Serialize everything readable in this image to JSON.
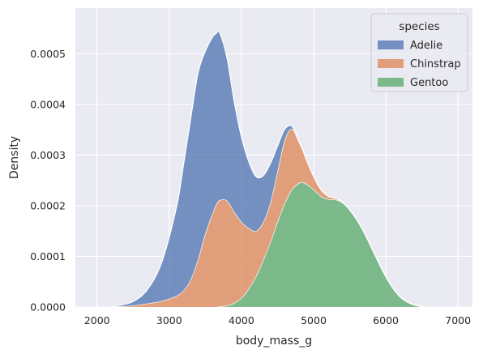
{
  "chart_data": {
    "type": "area",
    "stacked": true,
    "xlabel": "body_mass_g",
    "ylabel": "Density",
    "xlim": [
      1700,
      7200
    ],
    "ylim": [
      0,
      0.00059
    ],
    "xticks": [
      2000,
      3000,
      4000,
      5000,
      6000,
      7000
    ],
    "xtick_labels": [
      "2000",
      "3000",
      "4000",
      "5000",
      "6000",
      "7000"
    ],
    "yticks": [
      0,
      0.0001,
      0.0002,
      0.0003,
      0.0004,
      0.0005
    ],
    "ytick_labels": [
      "0.0000",
      "0.0001",
      "0.0002",
      "0.0003",
      "0.0004",
      "0.0005"
    ],
    "grid": true,
    "background": "#eaeaf2",
    "legend": {
      "title": "species",
      "position": "top-right"
    },
    "x": [
      2300,
      2500,
      2700,
      2900,
      3100,
      3200,
      3300,
      3400,
      3500,
      3600,
      3650,
      3700,
      3800,
      3900,
      4000,
      4100,
      4200,
      4300,
      4400,
      4500,
      4600,
      4700,
      4800,
      4850,
      4900,
      5000,
      5100,
      5200,
      5300,
      5400,
      5500,
      5600,
      5700,
      5800,
      5900,
      6000,
      6100,
      6200,
      6300,
      6400,
      6500
    ],
    "series": [
      {
        "name": "Gentoo",
        "color": "#55a868",
        "values": [
          0,
          0,
          0,
          0,
          0,
          0,
          0,
          0,
          0,
          0,
          0,
          1e-06,
          3e-06,
          8e-06,
          1.8e-05,
          3.6e-05,
          6e-05,
          9.2e-05,
          0.000128,
          0.000168,
          0.000205,
          0.000232,
          0.000245,
          0.000246,
          0.000243,
          0.000232,
          0.000219,
          0.000213,
          0.000212,
          0.000206,
          0.000192,
          0.000172,
          0.000147,
          0.000118,
          8.8e-05,
          6e-05,
          3.7e-05,
          2e-05,
          1e-05,
          4e-06,
          1e-06
        ]
      },
      {
        "name": "Chinstrap",
        "color": "#dd8452",
        "values": [
          1e-06,
          3e-06,
          7e-06,
          1.2e-05,
          2.2e-05,
          3.3e-05,
          5.5e-05,
          9.5e-05,
          0.000145,
          0.000185,
          0.000202,
          0.00021,
          0.000207,
          0.00018,
          0.00015,
          0.00012,
          9e-05,
          7.5e-05,
          7.8e-05,
          0.0001,
          0.000125,
          0.00012,
          8e-05,
          6.4e-05,
          4.8e-05,
          2.6e-05,
          1.3e-05,
          6e-06,
          3e-06,
          1e-06,
          0,
          0,
          0,
          0,
          0,
          0,
          0,
          0,
          0,
          0,
          0
        ]
      },
      {
        "name": "Adelie",
        "color": "#4c72b0",
        "values": [
          2e-06,
          8e-06,
          2.8e-05,
          7.8e-05,
          0.000175,
          0.00025,
          0.00032,
          0.000368,
          0.00036,
          0.000348,
          0.000338,
          0.00033,
          0.000282,
          0.000218,
          0.000168,
          0.000132,
          0.000108,
          9.2e-05,
          7.7e-05,
          5e-05,
          2.1e-05,
          5e-06,
          2e-06,
          1e-06,
          0,
          0,
          0,
          0,
          0,
          0,
          0,
          0,
          0,
          0,
          0,
          0,
          0,
          0,
          0,
          0,
          0
        ]
      }
    ],
    "legend_order": [
      "Adelie",
      "Chinstrap",
      "Gentoo"
    ]
  }
}
